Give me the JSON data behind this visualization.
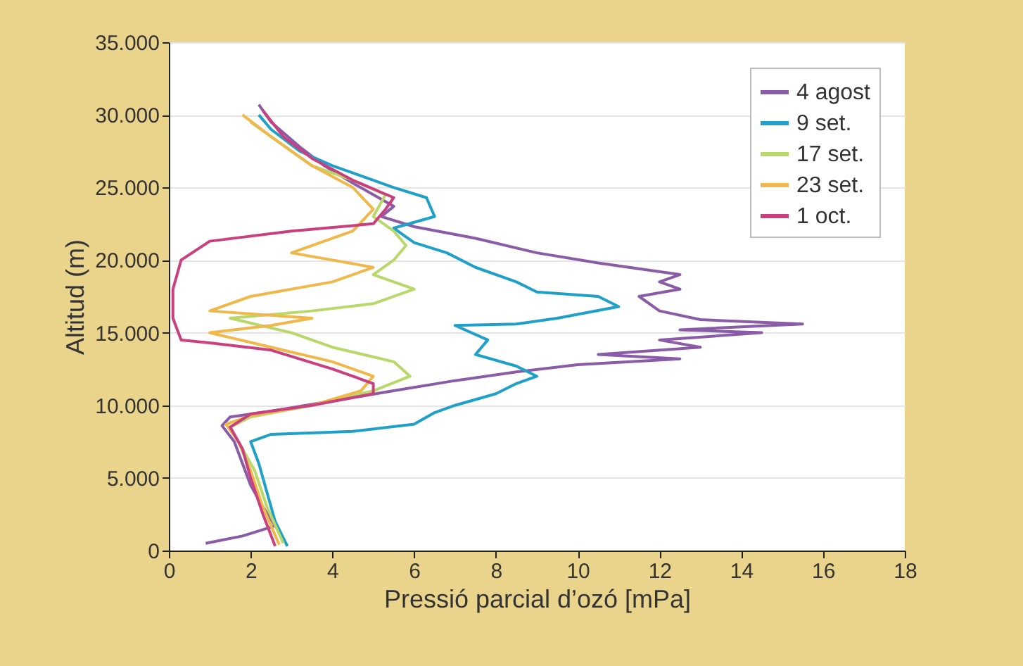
{
  "chart_data": {
    "type": "line",
    "xlabel": "Pressió parcial d’ozó [mPa]",
    "ylabel": "Altitud (m)",
    "xlim": [
      0,
      18
    ],
    "xticks": [
      0,
      2,
      4,
      6,
      8,
      10,
      12,
      14,
      16,
      18
    ],
    "ylim": [
      0,
      35000
    ],
    "yticks": [
      {
        "value": 0,
        "label": "0"
      },
      {
        "value": 5000,
        "label": "5.000"
      },
      {
        "value": 10000,
        "label": "10.000"
      },
      {
        "value": 15000,
        "label": "15.000"
      },
      {
        "value": 20000,
        "label": "20.000"
      },
      {
        "value": 25000,
        "label": "25.000"
      },
      {
        "value": 30000,
        "label": "30.000"
      },
      {
        "value": 35000,
        "label": "35.000"
      }
    ],
    "grid": "y",
    "legend": "top right",
    "series": [
      {
        "name": "4 agost",
        "color": "#8a5ca8",
        "x": [
          0.9,
          1.8,
          2.6,
          2.3,
          2.0,
          1.8,
          1.6,
          1.3,
          1.5,
          2.5,
          4,
          5.5,
          7,
          8.5,
          10,
          12.5,
          10.5,
          13,
          12,
          14.5,
          12.5,
          15.5,
          13,
          12,
          11.5,
          12.5,
          12,
          12.5,
          10.5,
          9,
          7.5,
          6,
          5.2,
          5.5,
          5,
          4.5,
          3.8,
          3.2,
          2.5,
          2.2
        ],
        "values": [
          500,
          1000,
          1700,
          3000,
          4500,
          6000,
          7500,
          8600,
          9200,
          9600,
          10300,
          11000,
          11700,
          12300,
          12800,
          13200,
          13500,
          14000,
          14500,
          15000,
          15200,
          15600,
          15900,
          16500,
          17500,
          18000,
          18500,
          19000,
          19800,
          20500,
          21500,
          22300,
          23000,
          23700,
          24500,
          25300,
          26500,
          27800,
          29500,
          30700
        ]
      },
      {
        "name": "9 set.",
        "color": "#1fa0c8",
        "x": [
          2.9,
          2.6,
          2.4,
          2.2,
          2.0,
          2.5,
          4.5,
          6,
          6.5,
          7,
          8,
          8.5,
          9,
          8.5,
          7.5,
          7.8,
          7,
          8.5,
          9.5,
          11,
          10.5,
          9,
          8.5,
          7.5,
          6.8,
          6,
          5.5,
          6.5,
          6.3,
          5.5,
          4.8,
          4,
          3.2,
          2.5,
          2.2
        ],
        "values": [
          300,
          2000,
          4000,
          6000,
          7500,
          8000,
          8200,
          8700,
          9500,
          10000,
          10800,
          11500,
          12000,
          12700,
          13500,
          14500,
          15500,
          15600,
          16000,
          16800,
          17500,
          17800,
          18500,
          19500,
          20500,
          21200,
          22200,
          23000,
          24300,
          25000,
          25700,
          26500,
          27500,
          29000,
          30000
        ]
      },
      {
        "name": "17 set.",
        "color": "#b8d86a",
        "x": [
          2.8,
          2.4,
          2.1,
          1.7,
          1.5,
          2,
          3.5,
          5,
          5.9,
          5.5,
          4,
          3,
          1.5,
          3.5,
          5,
          6,
          5,
          5.5,
          5.8,
          5.5,
          5,
          5.3,
          4.5,
          3.5,
          2.5,
          2
        ],
        "values": [
          500,
          3000,
          5500,
          7500,
          8500,
          9200,
          10000,
          11000,
          12000,
          13000,
          14000,
          15000,
          16000,
          16500,
          17000,
          18000,
          19000,
          20000,
          21000,
          22000,
          23000,
          24500,
          25500,
          26500,
          28500,
          29500
        ]
      },
      {
        "name": "23 set.",
        "color": "#f0b84a",
        "x": [
          2.7,
          2.3,
          2.0,
          1.7,
          1.4,
          2.0,
          3.5,
          4.7,
          5.0,
          4.0,
          2.5,
          1.0,
          2.5,
          3.5,
          1.0,
          2.0,
          4.0,
          5.0,
          3.0,
          4.5,
          5.0,
          4.5,
          3.5,
          2.5,
          1.8
        ],
        "values": [
          400,
          3000,
          5500,
          7500,
          8700,
          9300,
          10000,
          11000,
          12000,
          13000,
          14000,
          15000,
          15500,
          16000,
          16500,
          17500,
          18500,
          19500,
          20500,
          22000,
          23500,
          25000,
          26500,
          28500,
          30000
        ]
      },
      {
        "name": "1 oct.",
        "color": "#c9407f",
        "x": [
          2.6,
          2.3,
          2.0,
          1.8,
          1.5,
          2.0,
          3.5,
          5.0,
          5.0,
          4.0,
          2.5,
          1.0,
          0.3,
          0.1,
          0.1,
          0.3,
          1.0,
          3.0,
          5.0,
          5.3,
          5.5,
          4.5,
          3.5,
          2.8,
          2.3
        ],
        "values": [
          300,
          2500,
          5000,
          7000,
          8500,
          9400,
          10000,
          10800,
          11500,
          12500,
          13800,
          14300,
          14500,
          16000,
          18000,
          20000,
          21300,
          22000,
          22500,
          23500,
          24300,
          25500,
          27000,
          28500,
          30300
        ]
      }
    ]
  }
}
